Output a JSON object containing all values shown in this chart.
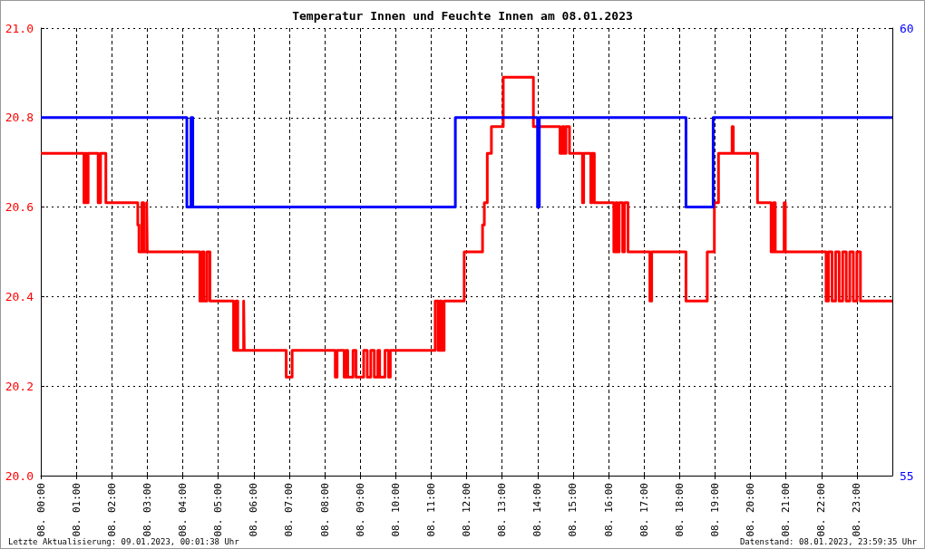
{
  "chart_data": {
    "type": "step",
    "title": "Temperatur Innen und Feuchte Innen am 08.01.2023",
    "annotations": [
      "Letzte Aktualisierung: 09.01.2023, 00:01:38 Uhr",
      "Datenstand: 08.01.2023, 23:59:35 Uhr"
    ],
    "xlim": [
      "2023-01-08T00:00",
      "2023-01-09T00:00"
    ],
    "xticks": [
      {
        "value": "2023-01-08T00:00",
        "label": "08. 00:00"
      },
      {
        "value": "2023-01-08T01:00",
        "label": "08. 01:00"
      },
      {
        "value": "2023-01-08T02:00",
        "label": "08. 02:00"
      },
      {
        "value": "2023-01-08T03:00",
        "label": "08. 03:00"
      },
      {
        "value": "2023-01-08T04:00",
        "label": "08. 04:00"
      },
      {
        "value": "2023-01-08T05:00",
        "label": "08. 05:00"
      },
      {
        "value": "2023-01-08T06:00",
        "label": "08. 06:00"
      },
      {
        "value": "2023-01-08T07:00",
        "label": "08. 07:00"
      },
      {
        "value": "2023-01-08T08:00",
        "label": "08. 08:00"
      },
      {
        "value": "2023-01-08T09:00",
        "label": "08. 09:00"
      },
      {
        "value": "2023-01-08T10:00",
        "label": "08. 10:00"
      },
      {
        "value": "2023-01-08T11:00",
        "label": "08. 11:00"
      },
      {
        "value": "2023-01-08T12:00",
        "label": "08. 12:00"
      },
      {
        "value": "2023-01-08T13:00",
        "label": "08. 13:00"
      },
      {
        "value": "2023-01-08T14:00",
        "label": "08. 14:00"
      },
      {
        "value": "2023-01-08T15:00",
        "label": "08. 15:00"
      },
      {
        "value": "2023-01-08T16:00",
        "label": "08. 16:00"
      },
      {
        "value": "2023-01-08T17:00",
        "label": "08. 17:00"
      },
      {
        "value": "2023-01-08T18:00",
        "label": "08. 18:00"
      },
      {
        "value": "2023-01-08T19:00",
        "label": "08. 19:00"
      },
      {
        "value": "2023-01-08T20:00",
        "label": "08. 20:00"
      },
      {
        "value": "2023-01-08T21:00",
        "label": "08. 21:00"
      },
      {
        "value": "2023-01-08T22:00",
        "label": "08. 22:00"
      },
      {
        "value": "2023-01-08T23:00",
        "label": "08. 23:00"
      }
    ],
    "ylim": [
      20,
      21
    ],
    "yticks": [
      {
        "value": 20,
        "label": "20.0"
      },
      {
        "value": 20.2,
        "label": "20.2"
      },
      {
        "value": 20.4,
        "label": "20.4"
      },
      {
        "value": 20.6,
        "label": "20.6"
      },
      {
        "value": 20.8,
        "label": "20.8"
      },
      {
        "value": 21,
        "label": "21.0"
      }
    ],
    "y2lim": [
      55,
      60
    ],
    "y2ticks": [
      55,
      60
    ],
    "grid": true,
    "marker": "none",
    "line_style": "solid",
    "series": [
      {
        "color": "#ff0000",
        "x": [
          "2023-01-08T00:00",
          "2023-01-08T01:13",
          "2023-01-08T01:16",
          "2023-01-08T01:18",
          "2023-01-08T01:20",
          "2023-01-08T01:37",
          "2023-01-08T01:41",
          "2023-01-08T01:50",
          "2023-01-08T02:44",
          "2023-01-08T02:46",
          "2023-01-08T02:51",
          "2023-01-08T02:54",
          "2023-01-08T02:59",
          "2023-01-08T03:00",
          "2023-01-08T04:29",
          "2023-01-08T04:33",
          "2023-01-08T04:36",
          "2023-01-08T04:41",
          "2023-01-08T04:46",
          "2023-01-08T05:26",
          "2023-01-08T05:30",
          "2023-01-08T05:33",
          "2023-01-08T05:43",
          "2023-01-08T05:44",
          "2023-01-08T06:55",
          "2023-01-08T07:05",
          "2023-01-08T08:18",
          "2023-01-08T08:21",
          "2023-01-08T08:33",
          "2023-01-08T08:36",
          "2023-01-08T08:39",
          "2023-01-08T08:48",
          "2023-01-08T08:53",
          "2023-01-08T09:06",
          "2023-01-08T09:12",
          "2023-01-08T09:18",
          "2023-01-08T09:24",
          "2023-01-08T09:30",
          "2023-01-08T09:33",
          "2023-01-08T09:42",
          "2023-01-08T09:48",
          "2023-01-08T09:51",
          "2023-01-08T11:07",
          "2023-01-08T11:12",
          "2023-01-08T11:15",
          "2023-01-08T11:18",
          "2023-01-08T11:22",
          "2023-01-08T11:56",
          "2023-01-08T12:27",
          "2023-01-08T12:30",
          "2023-01-08T12:35",
          "2023-01-08T12:42",
          "2023-01-08T13:02",
          "2023-01-08T13:53",
          "2023-01-08T14:38",
          "2023-01-08T14:42",
          "2023-01-08T14:45",
          "2023-01-08T14:48",
          "2023-01-08T14:54",
          "2023-01-08T15:16",
          "2023-01-08T15:18",
          "2023-01-08T15:30",
          "2023-01-08T15:32",
          "2023-01-08T15:36",
          "2023-01-08T16:09",
          "2023-01-08T16:12",
          "2023-01-08T16:15",
          "2023-01-08T16:18",
          "2023-01-08T16:24",
          "2023-01-08T16:27",
          "2023-01-08T16:33",
          "2023-01-08T17:10",
          "2023-01-08T17:13",
          "2023-01-08T18:11",
          "2023-01-08T18:47",
          "2023-01-08T18:59",
          "2023-01-08T19:06",
          "2023-01-08T19:29",
          "2023-01-08T19:31",
          "2023-01-08T20:12",
          "2023-01-08T20:35",
          "2023-01-08T20:39",
          "2023-01-08T20:42",
          "2023-01-08T20:57",
          "2023-01-08T20:59",
          "2023-01-08T22:08",
          "2023-01-08T22:12",
          "2023-01-08T22:18",
          "2023-01-08T22:24",
          "2023-01-08T22:30",
          "2023-01-08T22:36",
          "2023-01-08T22:42",
          "2023-01-08T22:48",
          "2023-01-08T22:54",
          "2023-01-08T23:00",
          "2023-01-08T23:06",
          "2023-01-09T00:00"
        ],
        "values": [
          20.72,
          20.61,
          20.72,
          20.61,
          20.72,
          20.61,
          20.72,
          20.61,
          20.56,
          20.5,
          20.61,
          20.5,
          20.61,
          20.5,
          20.39,
          20.5,
          20.39,
          20.5,
          20.39,
          20.28,
          20.39,
          20.28,
          20.39,
          20.28,
          20.22,
          20.28,
          20.22,
          20.28,
          20.22,
          20.28,
          20.22,
          20.28,
          20.22,
          20.28,
          20.22,
          20.28,
          20.22,
          20.28,
          20.22,
          20.28,
          20.22,
          20.28,
          20.39,
          20.28,
          20.39,
          20.28,
          20.39,
          20.5,
          20.56,
          20.61,
          20.72,
          20.78,
          20.89,
          20.78,
          20.72,
          20.78,
          20.72,
          20.78,
          20.72,
          20.61,
          20.72,
          20.61,
          20.72,
          20.61,
          20.5,
          20.61,
          20.5,
          20.61,
          20.5,
          20.61,
          20.5,
          20.39,
          20.5,
          20.39,
          20.5,
          20.61,
          20.72,
          20.78,
          20.72,
          20.61,
          20.5,
          20.61,
          20.5,
          20.61,
          20.5,
          20.39,
          20.5,
          20.39,
          20.5,
          20.39,
          20.5,
          20.39,
          20.5,
          20.39,
          20.5,
          20.39,
          20.39
        ]
      },
      {
        "color": "#0000ff",
        "axis": "y2",
        "x": [
          "2023-01-08T00:00",
          "2023-01-08T04:07",
          "2023-01-08T04:14",
          "2023-01-08T04:17",
          "2023-01-08T11:41",
          "2023-01-08T13:56",
          "2023-01-08T14:00",
          "2023-01-08T14:03",
          "2023-01-08T18:11",
          "2023-01-08T18:57",
          "2023-01-09T00:00"
        ],
        "values": [
          59,
          58,
          59,
          58,
          59,
          59,
          58,
          59,
          58,
          59,
          59
        ]
      }
    ]
  }
}
